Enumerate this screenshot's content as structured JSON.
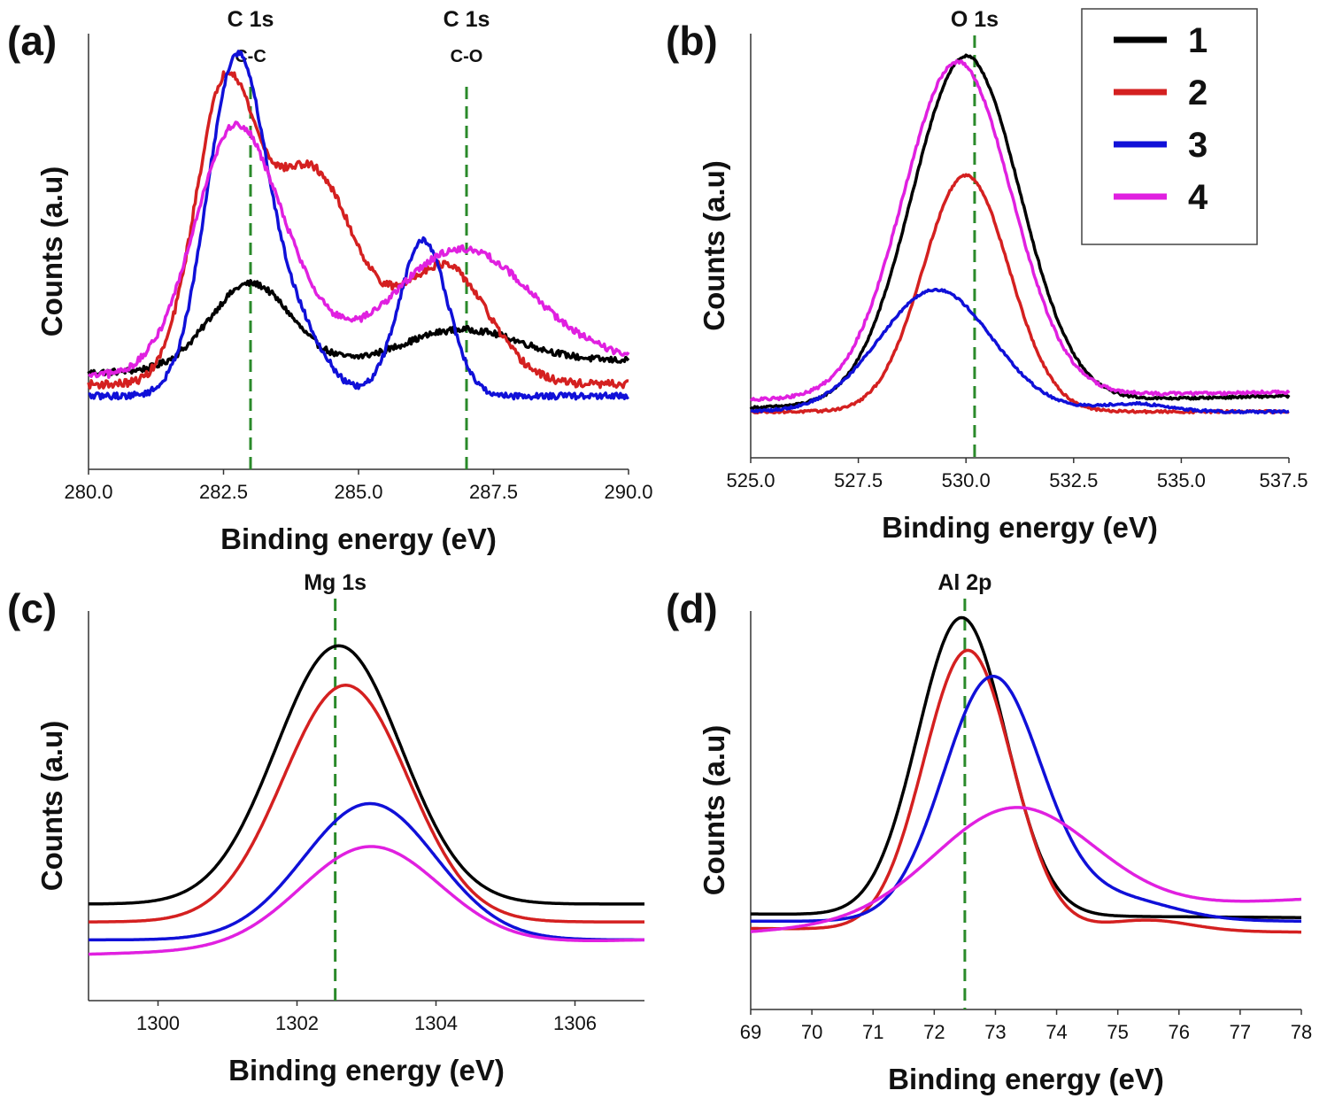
{
  "legend": {
    "entries": [
      {
        "label": "1",
        "color": "#000000"
      },
      {
        "label": "2",
        "color": "#d42020"
      },
      {
        "label": "3",
        "color": "#1010d8"
      },
      {
        "label": "4",
        "color": "#e020e0"
      }
    ]
  },
  "reference_line_color": "#2a8a2a",
  "chart_data": [
    {
      "type": "line",
      "panel": "(a)",
      "xlabel": "Binding energy (eV)",
      "ylabel": "Counts (a.u)",
      "xlim": [
        280.0,
        290.0
      ],
      "ylim": [
        0,
        1
      ],
      "xticks": [
        280.0,
        282.5,
        285.0,
        287.5,
        290.0
      ],
      "xtick_labels": [
        "280.0",
        "282.5",
        "285.0",
        "287.5",
        "290.0"
      ],
      "annotations": [
        {
          "x": 283.0,
          "title": "C 1s",
          "subtitle": "C-C"
        },
        {
          "x": 287.0,
          "title": "C 1s",
          "subtitle": "C-O"
        }
      ],
      "series": [
        {
          "name": "1",
          "baseline": 0.18,
          "slope": 0.03,
          "noise": 0.008,
          "peaks": [
            [
              283.0,
              0.22,
              0.75
            ],
            [
              286.9,
              0.09,
              1.1
            ]
          ]
        },
        {
          "name": "2",
          "baseline": 0.15,
          "slope": 0.0,
          "noise": 0.01,
          "peaks": [
            [
              282.5,
              0.7,
              0.55
            ],
            [
              284.1,
              0.55,
              0.85
            ],
            [
              286.6,
              0.3,
              0.8
            ]
          ]
        },
        {
          "name": "3",
          "baseline": 0.12,
          "slope": 0.0,
          "noise": 0.008,
          "peaks": [
            [
              282.75,
              0.87,
              0.55
            ],
            [
              283.9,
              0.15,
              0.5
            ],
            [
              286.2,
              0.4,
              0.45
            ]
          ]
        },
        {
          "name": "4",
          "baseline": 0.17,
          "slope": 0.04,
          "noise": 0.009,
          "peaks": [
            [
              282.7,
              0.62,
              0.75
            ],
            [
              283.9,
              0.1,
              0.6
            ],
            [
              286.9,
              0.3,
              1.3
            ]
          ]
        }
      ]
    },
    {
      "type": "line",
      "panel": "(b)",
      "xlabel": "Binding energy (eV)",
      "ylabel": "Counts (a.u)",
      "xlim": [
        525.0,
        537.5
      ],
      "ylim": [
        0,
        1
      ],
      "xticks": [
        525.0,
        527.5,
        530.0,
        532.5,
        535.0,
        537.5
      ],
      "xtick_labels": [
        "525.0",
        "527.5",
        "530.0",
        "532.5",
        "535.0",
        "537.5"
      ],
      "annotations": [
        {
          "x": 530.2,
          "title": "O 1s",
          "subtitle": ""
        }
      ],
      "series": [
        {
          "name": "1",
          "baseline": 0.1,
          "slope": 0.03,
          "noise": 0.003,
          "peaks": [
            [
              530.0,
              0.88,
              1.25
            ]
          ]
        },
        {
          "name": "2",
          "baseline": 0.09,
          "slope": 0.0,
          "noise": 0.003,
          "peaks": [
            [
              530.0,
              0.6,
              1.0
            ]
          ]
        },
        {
          "name": "3",
          "baseline": 0.09,
          "slope": 0.0,
          "noise": 0.003,
          "peaks": [
            [
              529.3,
              0.31,
              1.3
            ],
            [
              533.9,
              0.02,
              0.8
            ]
          ]
        },
        {
          "name": "4",
          "baseline": 0.12,
          "slope": 0.02,
          "noise": 0.004,
          "peaks": [
            [
              529.8,
              0.85,
              1.25
            ]
          ]
        }
      ]
    },
    {
      "type": "line",
      "panel": "(c)",
      "xlabel": "Binding energy (eV)",
      "ylabel": "Counts (a.u)",
      "xlim": [
        1299,
        1307
      ],
      "ylim": [
        0,
        1
      ],
      "xticks": [
        1300,
        1302,
        1304,
        1306
      ],
      "xtick_labels": [
        "1300",
        "1302",
        "1304",
        "1306"
      ],
      "annotations": [
        {
          "x": 1302.55,
          "title": "Mg 1s",
          "subtitle": ""
        }
      ],
      "series": [
        {
          "name": "1",
          "baseline": 0.22,
          "slope": 0.0,
          "noise": 0.0,
          "peaks": [
            [
              1302.6,
              0.72,
              0.9
            ]
          ]
        },
        {
          "name": "2",
          "baseline": 0.17,
          "slope": 0.0,
          "noise": 0.0,
          "peaks": [
            [
              1302.7,
              0.66,
              0.9
            ]
          ]
        },
        {
          "name": "3",
          "baseline": 0.12,
          "slope": 0.0,
          "noise": 0.0,
          "peaks": [
            [
              1303.05,
              0.38,
              0.95
            ]
          ]
        },
        {
          "name": "4",
          "baseline": 0.08,
          "slope": 0.04,
          "noise": 0.0,
          "peaks": [
            [
              1303.05,
              0.28,
              1.0
            ]
          ]
        }
      ]
    },
    {
      "type": "line",
      "panel": "(d)",
      "xlabel": "Binding energy (eV)",
      "ylabel": "Counts (a.u)",
      "xlim": [
        69,
        78
      ],
      "ylim": [
        0,
        1
      ],
      "xticks": [
        69,
        70,
        71,
        72,
        73,
        74,
        75,
        76,
        77,
        78
      ],
      "xtick_labels": [
        "69",
        "70",
        "71",
        "72",
        "73",
        "74",
        "75",
        "76",
        "77",
        "78"
      ],
      "annotations": [
        {
          "x": 72.5,
          "title": "Al 2p",
          "subtitle": ""
        }
      ],
      "series": [
        {
          "name": "1",
          "baseline": 0.19,
          "slope": -0.01,
          "noise": 0.0,
          "peaks": [
            [
              72.45,
              0.82,
              0.72
            ]
          ]
        },
        {
          "name": "2",
          "baseline": 0.15,
          "slope": -0.01,
          "noise": 0.0,
          "peaks": [
            [
              72.55,
              0.77,
              0.72
            ],
            [
              75.5,
              0.03,
              0.7
            ]
          ]
        },
        {
          "name": "3",
          "baseline": 0.17,
          "slope": 0.0,
          "noise": 0.0,
          "peaks": [
            [
              72.95,
              0.67,
              0.8
            ],
            [
              75.0,
              0.06,
              0.9
            ]
          ]
        },
        {
          "name": "4",
          "baseline": 0.14,
          "slope": 0.09,
          "noise": 0.0,
          "peaks": [
            [
              73.3,
              0.3,
              1.3
            ]
          ]
        }
      ]
    }
  ]
}
